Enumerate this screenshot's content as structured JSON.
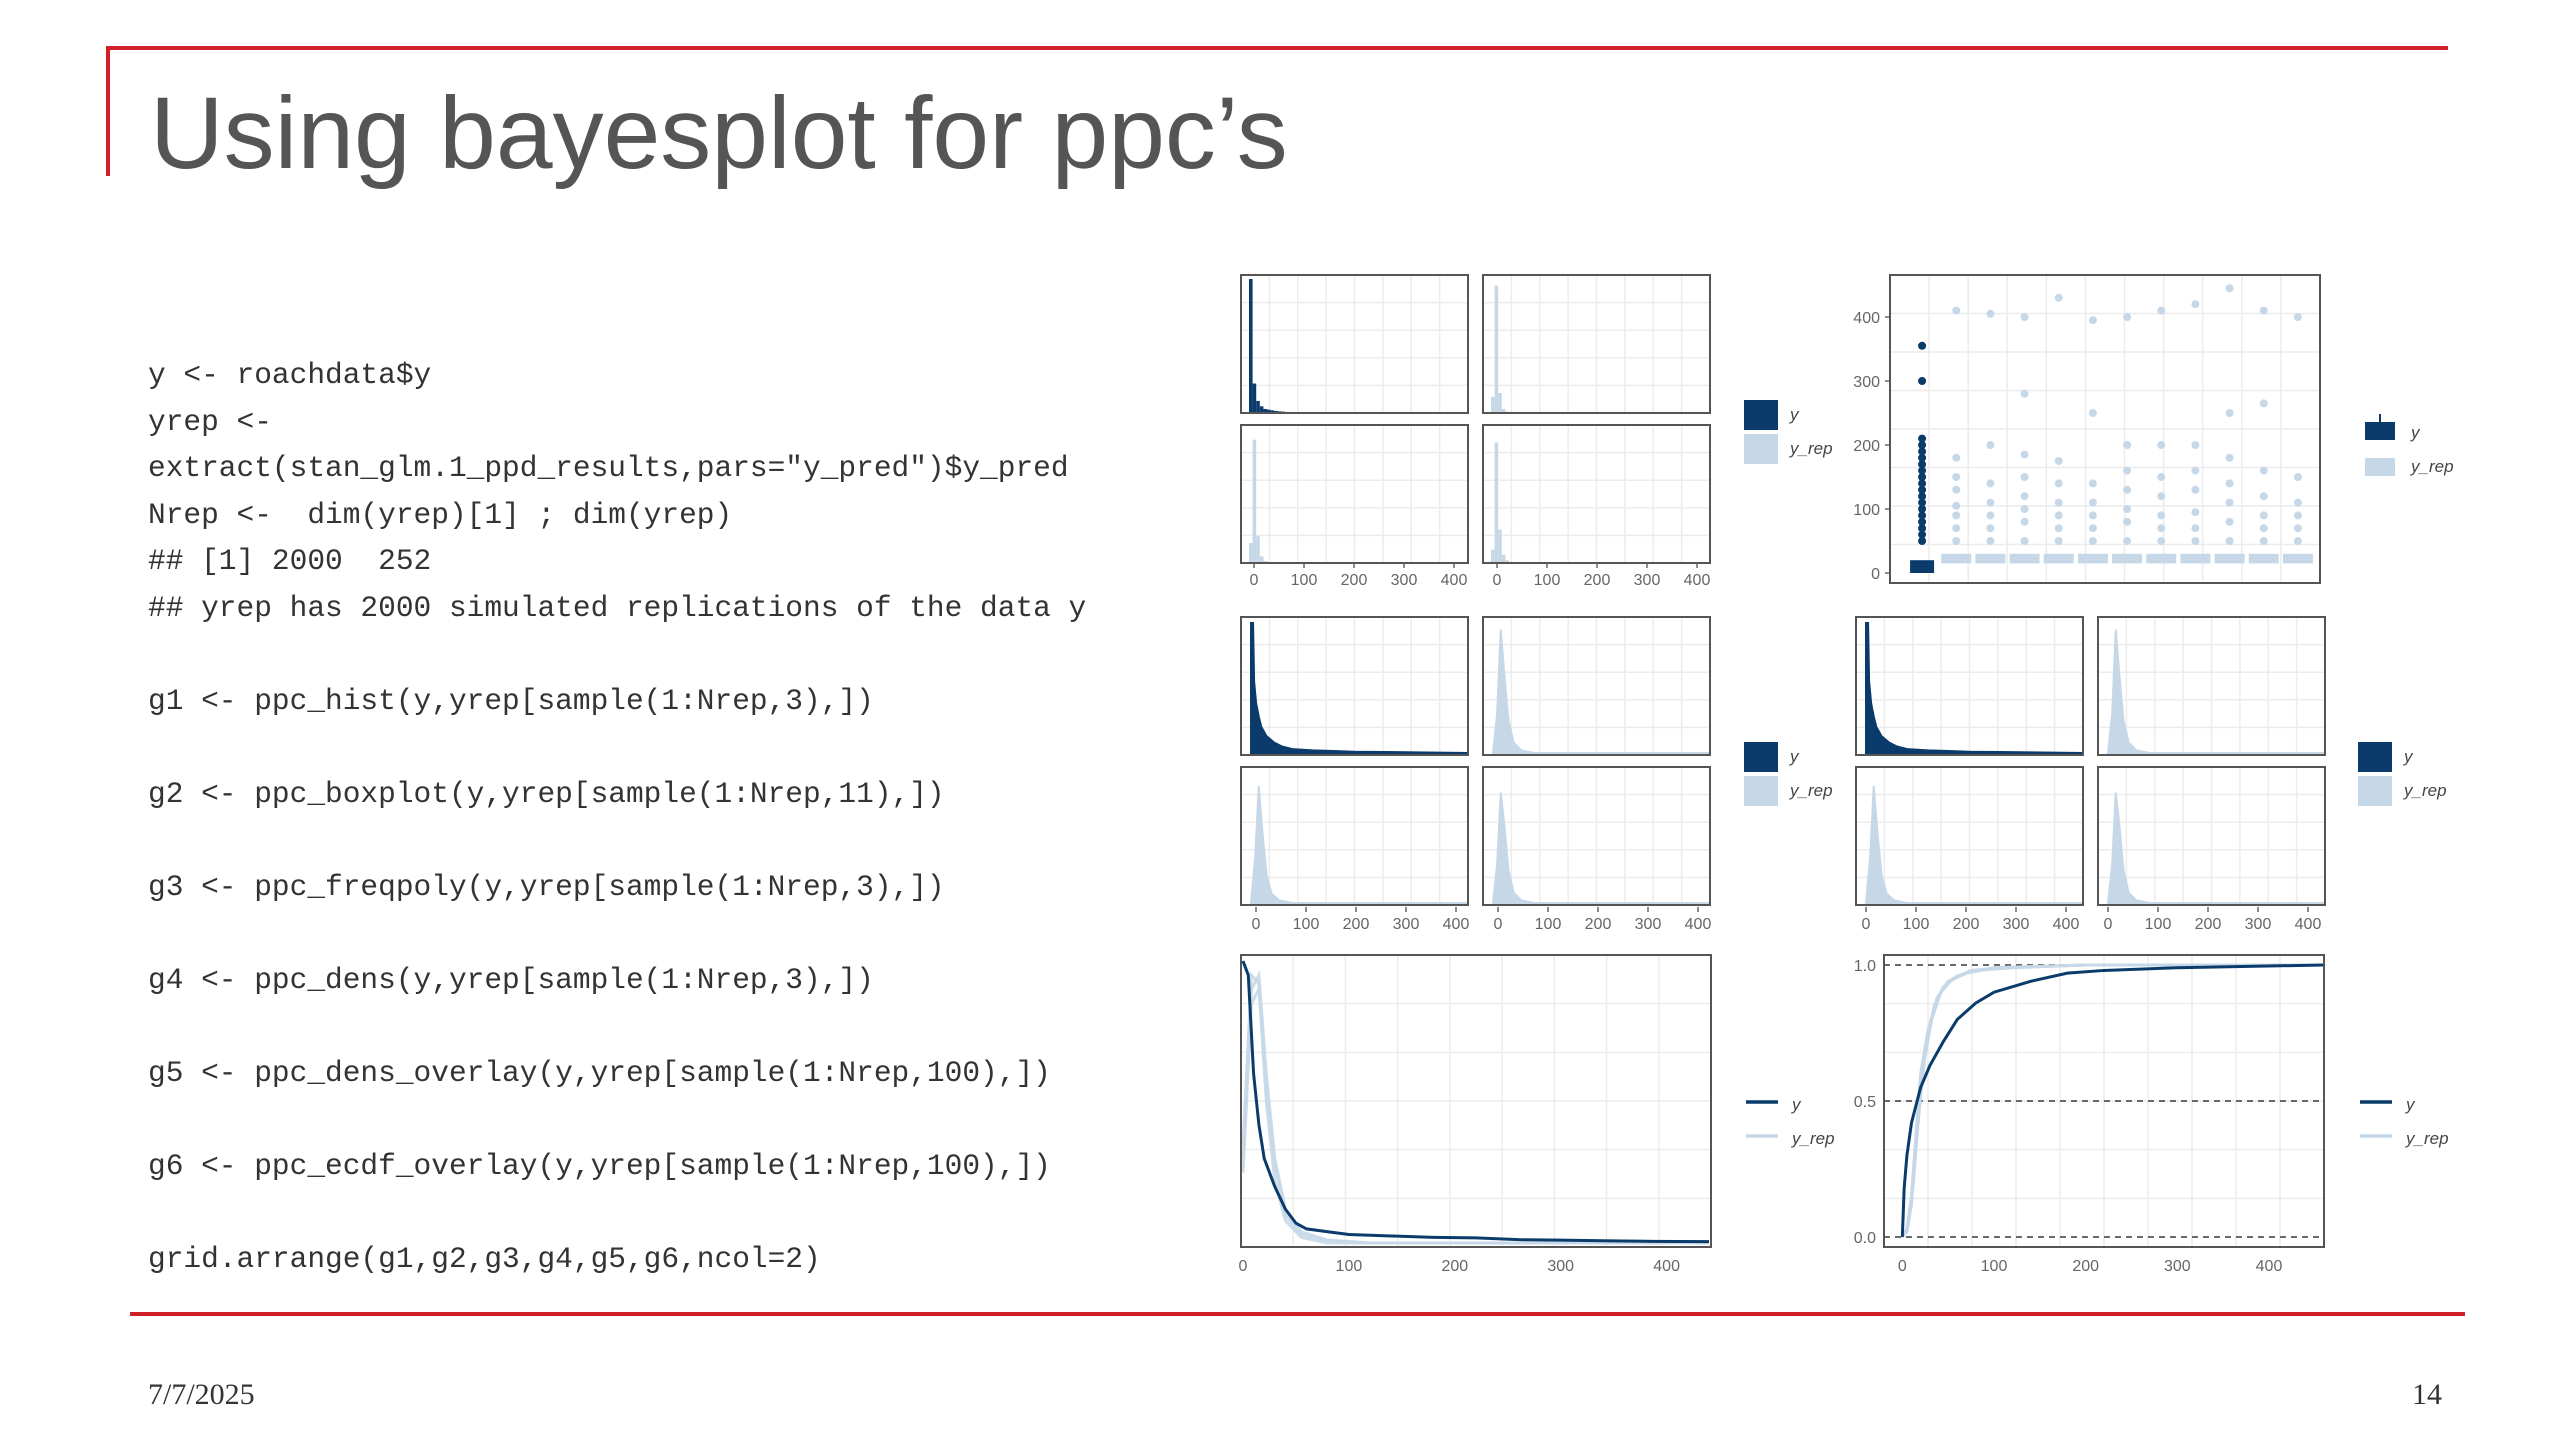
{
  "slide": {
    "title": "Using bayesplot for ppc’s",
    "date": "7/7/2025",
    "page_number": "14"
  },
  "code_lines": [
    "y <- roachdata$y",
    "yrep <-",
    "extract(stan_glm.1_ppd_results,pars=\"y_pred\")$y_pred",
    "Nrep <-  dim(yrep)[1] ; dim(yrep)",
    "## [1] 2000  252",
    "## yrep has 2000 simulated replications of the data y",
    "",
    "g1 <- ppc_hist(y,yrep[sample(1:Nrep,3),])",
    "",
    "g2 <- ppc_boxplot(y,yrep[sample(1:Nrep,11),])",
    "",
    "g3 <- ppc_freqpoly(y,yrep[sample(1:Nrep,3),])",
    "",
    "g4 <- ppc_dens(y,yrep[sample(1:Nrep,3),])",
    "",
    "g5 <- ppc_dens_overlay(y,yrep[sample(1:Nrep,100),])",
    "",
    "g6 <- ppc_ecdf_overlay(y,yrep[sample(1:Nrep,100),])",
    "",
    "grid.arrange(g1,g2,g3,g4,g5,g6,ncol=2)"
  ],
  "colors": {
    "y": "#0b3b6b",
    "yrep": "#c6d8e8",
    "rule": "#d0202a",
    "grid": "#ececec",
    "panel_border": "#555555"
  },
  "legend": {
    "y": "y",
    "yrep": "y_rep"
  },
  "chart_data": [
    {
      "name": "g1",
      "type": "bar",
      "kind": "ppc_hist",
      "panels": [
        "y",
        "y_rep",
        "y_rep",
        "y_rep"
      ],
      "x_ticks": [
        0,
        100,
        200,
        300,
        400
      ],
      "xlim": [
        0,
        420
      ],
      "bins": [
        [
          1.0,
          0.22,
          0.09,
          0.05,
          0.03,
          0.025,
          0.02,
          0.015,
          0.012,
          0.01,
          0.008,
          0.006,
          0.005,
          0.005,
          0.004,
          0.003,
          0.003,
          0.002,
          0.002,
          0.002,
          0.0,
          0.0,
          0.0,
          0.0,
          0.0,
          0.0,
          0.0,
          0.0,
          0.0,
          0.0
        ],
        [
          0.12,
          0.95,
          0.15,
          0.03,
          0.01,
          0.005,
          0.0,
          0.0,
          0.0,
          0.0,
          0.0,
          0.0,
          0.0,
          0.0,
          0.0,
          0.0,
          0.0,
          0.0,
          0.0,
          0.0,
          0.0,
          0.0,
          0.0,
          0.0,
          0.0,
          0.0,
          0.0,
          0.0,
          0.0,
          0.0
        ],
        [
          0.15,
          0.92,
          0.2,
          0.05,
          0.015,
          0.005,
          0.0,
          0.0,
          0.0,
          0.0,
          0.0,
          0.0,
          0.0,
          0.0,
          0.0,
          0.0,
          0.0,
          0.0,
          0.0,
          0.0,
          0.0,
          0.0,
          0.0,
          0.0,
          0.0,
          0.0,
          0.0,
          0.0,
          0.0,
          0.0
        ],
        [
          0.1,
          0.9,
          0.25,
          0.06,
          0.02,
          0.005,
          0.0,
          0.0,
          0.0,
          0.0,
          0.0,
          0.0,
          0.0,
          0.0,
          0.0,
          0.0,
          0.0,
          0.0,
          0.0,
          0.0,
          0.0,
          0.0,
          0.0,
          0.0,
          0.0,
          0.0,
          0.0,
          0.0,
          0.0,
          0.0
        ]
      ]
    },
    {
      "name": "g2",
      "type": "scatter",
      "kind": "ppc_boxplot",
      "groups": [
        "y",
        "y_rep",
        "y_rep",
        "y_rep",
        "y_rep",
        "y_rep",
        "y_rep",
        "y_rep",
        "y_rep",
        "y_rep",
        "y_rep",
        "y_rep"
      ],
      "ylim": [
        0,
        450
      ],
      "y_ticks": [
        0,
        100,
        200,
        300,
        400
      ],
      "boxes": [
        {
          "q1": 0,
          "median": 0,
          "q3": 20
        },
        {
          "q1": 15,
          "median": 22,
          "q3": 30
        },
        {
          "q1": 15,
          "median": 22,
          "q3": 30
        },
        {
          "q1": 15,
          "median": 22,
          "q3": 30
        },
        {
          "q1": 15,
          "median": 22,
          "q3": 30
        },
        {
          "q1": 15,
          "median": 22,
          "q3": 30
        },
        {
          "q1": 15,
          "median": 22,
          "q3": 30
        },
        {
          "q1": 15,
          "median": 22,
          "q3": 30
        },
        {
          "q1": 15,
          "median": 22,
          "q3": 30
        },
        {
          "q1": 15,
          "median": 22,
          "q3": 30
        },
        {
          "q1": 15,
          "median": 22,
          "q3": 30
        },
        {
          "q1": 15,
          "median": 22,
          "q3": 30
        }
      ],
      "outliers": [
        [
          50,
          60,
          70,
          80,
          90,
          100,
          110,
          120,
          130,
          140,
          150,
          160,
          170,
          180,
          190,
          200,
          210,
          300,
          355
        ],
        [
          50,
          70,
          90,
          105,
          130,
          150,
          180,
          410
        ],
        [
          50,
          70,
          90,
          110,
          140,
          200,
          405
        ],
        [
          50,
          80,
          100,
          120,
          150,
          185,
          280,
          400
        ],
        [
          50,
          70,
          90,
          110,
          140,
          175,
          430
        ],
        [
          50,
          70,
          90,
          110,
          140,
          250,
          395
        ],
        [
          50,
          80,
          100,
          130,
          160,
          200,
          400
        ],
        [
          50,
          70,
          90,
          120,
          150,
          200,
          410
        ],
        [
          50,
          70,
          95,
          130,
          160,
          200,
          420
        ],
        [
          50,
          80,
          110,
          140,
          180,
          250,
          445
        ],
        [
          50,
          70,
          90,
          120,
          160,
          265,
          410
        ],
        [
          50,
          70,
          90,
          110,
          150,
          400
        ]
      ]
    },
    {
      "name": "g3",
      "type": "area",
      "kind": "ppc_freqpoly",
      "panels": [
        "y",
        "y_rep",
        "y_rep",
        "y_rep"
      ],
      "x_ticks": [
        0,
        100,
        200,
        300,
        400
      ],
      "xlim": [
        0,
        420
      ],
      "curves": [
        [
          [
            0,
            1.0
          ],
          [
            4,
            1.0
          ],
          [
            6,
            0.55
          ],
          [
            10,
            0.38
          ],
          [
            15,
            0.28
          ],
          [
            20,
            0.2
          ],
          [
            30,
            0.13
          ],
          [
            45,
            0.08
          ],
          [
            60,
            0.05
          ],
          [
            80,
            0.03
          ],
          [
            120,
            0.02
          ],
          [
            160,
            0.015
          ],
          [
            200,
            0.01
          ],
          [
            260,
            0.008
          ],
          [
            320,
            0.005
          ],
          [
            420,
            0.0
          ]
        ],
        [
          [
            0,
            0.0
          ],
          [
            8,
            0.3
          ],
          [
            15,
            0.95
          ],
          [
            22,
            0.6
          ],
          [
            30,
            0.25
          ],
          [
            40,
            0.08
          ],
          [
            55,
            0.02
          ],
          [
            80,
            0.0
          ],
          [
            420,
            0.0
          ]
        ],
        [
          [
            0,
            0.0
          ],
          [
            8,
            0.35
          ],
          [
            15,
            0.9
          ],
          [
            22,
            0.55
          ],
          [
            30,
            0.22
          ],
          [
            40,
            0.07
          ],
          [
            55,
            0.02
          ],
          [
            80,
            0.0
          ],
          [
            420,
            0.0
          ]
        ],
        [
          [
            0,
            0.0
          ],
          [
            8,
            0.3
          ],
          [
            15,
            0.85
          ],
          [
            22,
            0.6
          ],
          [
            30,
            0.25
          ],
          [
            40,
            0.08
          ],
          [
            55,
            0.02
          ],
          [
            80,
            0.0
          ],
          [
            420,
            0.0
          ]
        ]
      ]
    },
    {
      "name": "g4",
      "type": "area",
      "kind": "ppc_dens",
      "panels": [
        "y",
        "y_rep",
        "y_rep",
        "y_rep"
      ],
      "x_ticks": [
        0,
        100,
        200,
        300,
        400
      ],
      "xlim": [
        0,
        420
      ],
      "curves": [
        [
          [
            0,
            1.0
          ],
          [
            4,
            1.0
          ],
          [
            6,
            0.55
          ],
          [
            10,
            0.38
          ],
          [
            15,
            0.28
          ],
          [
            20,
            0.2
          ],
          [
            30,
            0.13
          ],
          [
            45,
            0.08
          ],
          [
            60,
            0.05
          ],
          [
            80,
            0.03
          ],
          [
            120,
            0.02
          ],
          [
            160,
            0.015
          ],
          [
            200,
            0.01
          ],
          [
            260,
            0.008
          ],
          [
            320,
            0.005
          ],
          [
            420,
            0.0
          ]
        ],
        [
          [
            0,
            0.0
          ],
          [
            8,
            0.3
          ],
          [
            15,
            0.95
          ],
          [
            22,
            0.6
          ],
          [
            30,
            0.25
          ],
          [
            40,
            0.08
          ],
          [
            55,
            0.02
          ],
          [
            80,
            0.0
          ],
          [
            420,
            0.0
          ]
        ],
        [
          [
            0,
            0.0
          ],
          [
            8,
            0.35
          ],
          [
            15,
            0.9
          ],
          [
            22,
            0.55
          ],
          [
            30,
            0.22
          ],
          [
            40,
            0.07
          ],
          [
            55,
            0.02
          ],
          [
            80,
            0.0
          ],
          [
            420,
            0.0
          ]
        ],
        [
          [
            0,
            0.0
          ],
          [
            8,
            0.3
          ],
          [
            15,
            0.85
          ],
          [
            22,
            0.6
          ],
          [
            30,
            0.25
          ],
          [
            40,
            0.08
          ],
          [
            55,
            0.02
          ],
          [
            80,
            0.0
          ],
          [
            420,
            0.0
          ]
        ]
      ]
    },
    {
      "name": "g5",
      "type": "line",
      "kind": "ppc_dens_overlay",
      "x_ticks": [
        0,
        100,
        200,
        300,
        400
      ],
      "xlim": [
        0,
        440
      ],
      "y_curve": [
        [
          0,
          1.0
        ],
        [
          5,
          0.95
        ],
        [
          10,
          0.6
        ],
        [
          15,
          0.42
        ],
        [
          20,
          0.3
        ],
        [
          30,
          0.2
        ],
        [
          40,
          0.12
        ],
        [
          50,
          0.07
        ],
        [
          60,
          0.05
        ],
        [
          80,
          0.04
        ],
        [
          100,
          0.03
        ],
        [
          140,
          0.025
        ],
        [
          180,
          0.02
        ],
        [
          220,
          0.018
        ],
        [
          260,
          0.012
        ],
        [
          300,
          0.01
        ],
        [
          340,
          0.008
        ],
        [
          380,
          0.006
        ],
        [
          440,
          0.005
        ]
      ],
      "yrep_curves": [
        [
          [
            0,
            0.3
          ],
          [
            8,
            0.9
          ],
          [
            15,
            0.95
          ],
          [
            22,
            0.6
          ],
          [
            30,
            0.3
          ],
          [
            40,
            0.12
          ],
          [
            55,
            0.04
          ],
          [
            80,
            0.01
          ],
          [
            120,
            0.0
          ],
          [
            440,
            0.0
          ]
        ],
        [
          [
            0,
            0.25
          ],
          [
            8,
            0.85
          ],
          [
            15,
            0.9
          ],
          [
            22,
            0.55
          ],
          [
            30,
            0.28
          ],
          [
            40,
            0.1
          ],
          [
            55,
            0.03
          ],
          [
            80,
            0.01
          ],
          [
            120,
            0.0
          ],
          [
            440,
            0.0
          ]
        ],
        [
          [
            0,
            0.35
          ],
          [
            8,
            0.95
          ],
          [
            15,
            0.92
          ],
          [
            22,
            0.5
          ],
          [
            30,
            0.22
          ],
          [
            40,
            0.08
          ],
          [
            55,
            0.02
          ],
          [
            80,
            0.0
          ],
          [
            440,
            0.0
          ]
        ]
      ]
    },
    {
      "name": "g6",
      "type": "line",
      "kind": "ppc_ecdf_overlay",
      "x_ticks": [
        0,
        100,
        200,
        300,
        400
      ],
      "y_ticks": [
        0.0,
        0.5,
        1.0
      ],
      "xlim": [
        -20,
        460
      ],
      "ylim": [
        0,
        1
      ],
      "y_curve": [
        [
          0,
          0.0
        ],
        [
          2,
          0.18
        ],
        [
          5,
          0.3
        ],
        [
          10,
          0.42
        ],
        [
          20,
          0.55
        ],
        [
          30,
          0.63
        ],
        [
          45,
          0.72
        ],
        [
          60,
          0.8
        ],
        [
          80,
          0.86
        ],
        [
          100,
          0.9
        ],
        [
          140,
          0.94
        ],
        [
          180,
          0.97
        ],
        [
          220,
          0.98
        ],
        [
          300,
          0.99
        ],
        [
          460,
          1.0
        ]
      ],
      "yrep_curves": [
        [
          [
            0,
            0.0
          ],
          [
            5,
            0.02
          ],
          [
            10,
            0.12
          ],
          [
            15,
            0.35
          ],
          [
            20,
            0.55
          ],
          [
            25,
            0.7
          ],
          [
            35,
            0.85
          ],
          [
            45,
            0.92
          ],
          [
            60,
            0.96
          ],
          [
            80,
            0.98
          ],
          [
            120,
            0.99
          ],
          [
            200,
            1.0
          ],
          [
            460,
            1.0
          ]
        ],
        [
          [
            0,
            0.0
          ],
          [
            5,
            0.03
          ],
          [
            10,
            0.15
          ],
          [
            15,
            0.38
          ],
          [
            20,
            0.6
          ],
          [
            28,
            0.76
          ],
          [
            38,
            0.88
          ],
          [
            50,
            0.94
          ],
          [
            70,
            0.97
          ],
          [
            100,
            0.99
          ],
          [
            200,
            1.0
          ],
          [
            460,
            1.0
          ]
        ],
        [
          [
            0,
            0.0
          ],
          [
            5,
            0.02
          ],
          [
            12,
            0.2
          ],
          [
            18,
            0.45
          ],
          [
            24,
            0.65
          ],
          [
            32,
            0.8
          ],
          [
            42,
            0.9
          ],
          [
            55,
            0.95
          ],
          [
            75,
            0.98
          ],
          [
            110,
            0.99
          ],
          [
            200,
            1.0
          ],
          [
            460,
            1.0
          ]
        ]
      ]
    }
  ]
}
